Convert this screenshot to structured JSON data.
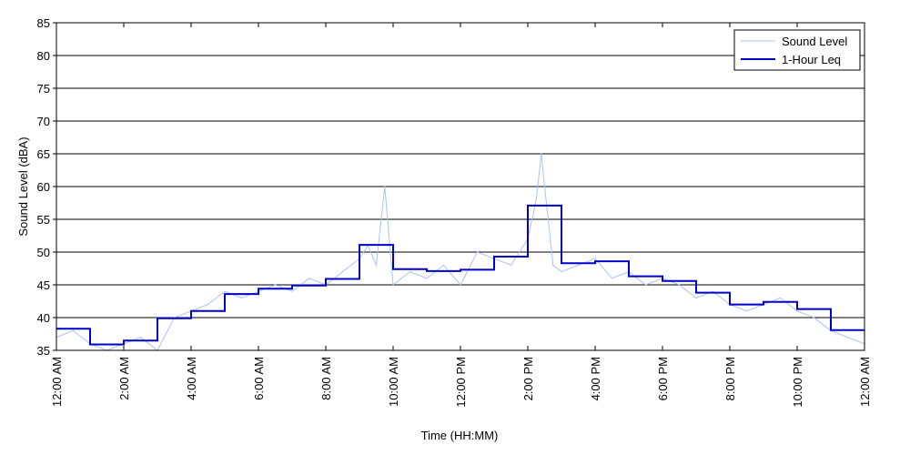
{
  "chart_data": {
    "type": "line",
    "title": "",
    "xlabel": "Time (HH:MM)",
    "ylabel": "Sound Level (dBA)",
    "xlim": [
      0,
      24
    ],
    "ylim": [
      35,
      85
    ],
    "y_ticks": [
      35,
      40,
      45,
      50,
      55,
      60,
      65,
      70,
      75,
      80,
      85
    ],
    "x_ticks": [
      0,
      2,
      4,
      6,
      8,
      10,
      12,
      14,
      16,
      18,
      20,
      22,
      24
    ],
    "x_tick_labels": [
      "12:00 AM",
      "2:00 AM",
      "4:00 AM",
      "6:00 AM",
      "8:00 AM",
      "10:00 AM",
      "12:00 PM",
      "2:00 PM",
      "4:00 PM",
      "6:00 PM",
      "8:00 PM",
      "10:00 PM",
      "12:00 AM"
    ],
    "grid": "horizontal",
    "legend_position": "top-right",
    "colors": {
      "sound_level": "#a8c4f0",
      "leq": "#0000cc"
    },
    "series": [
      {
        "name": "Sound Level",
        "style": "thin-light-blue",
        "x": [
          0,
          0.5,
          1,
          1.5,
          2,
          2.5,
          3,
          3.5,
          4,
          4.5,
          5,
          5.5,
          6,
          6.5,
          7,
          7.5,
          8,
          8.5,
          9,
          9.25,
          9.5,
          9.75,
          10,
          10.5,
          11,
          11.5,
          12,
          12.5,
          13,
          13.5,
          14,
          14.25,
          14.4,
          14.5,
          14.75,
          15,
          15.5,
          16,
          16.5,
          17,
          17.5,
          18,
          18.5,
          19,
          19.5,
          20,
          20.5,
          21,
          21.5,
          22,
          22.5,
          23,
          23.5,
          24
        ],
        "y": [
          37,
          38,
          36,
          35,
          36,
          37,
          35,
          40,
          41,
          42,
          44,
          43,
          44,
          45,
          44,
          46,
          45,
          47,
          49,
          51,
          48,
          60,
          45,
          47,
          46,
          48,
          45,
          50,
          49,
          48,
          52,
          58,
          65,
          60,
          48,
          47,
          48,
          49,
          46,
          47,
          45,
          46,
          45,
          43,
          44,
          42,
          41,
          42,
          43,
          41,
          40,
          38,
          37,
          36
        ]
      },
      {
        "name": "1-Hour Leq",
        "style": "step",
        "x": [
          0,
          1,
          2,
          3,
          4,
          5,
          6,
          7,
          8,
          9,
          10,
          11,
          12,
          13,
          14,
          15,
          16,
          17,
          18,
          19,
          20,
          21,
          22,
          23
        ],
        "values": [
          38.3,
          35.9,
          36.5,
          39.9,
          41.0,
          43.6,
          44.4,
          44.9,
          45.9,
          51.1,
          47.4,
          47.1,
          47.3,
          49.3,
          57.1,
          48.3,
          48.6,
          46.3,
          45.6,
          43.8,
          42.0,
          42.4,
          41.3,
          38.1
        ]
      }
    ]
  }
}
